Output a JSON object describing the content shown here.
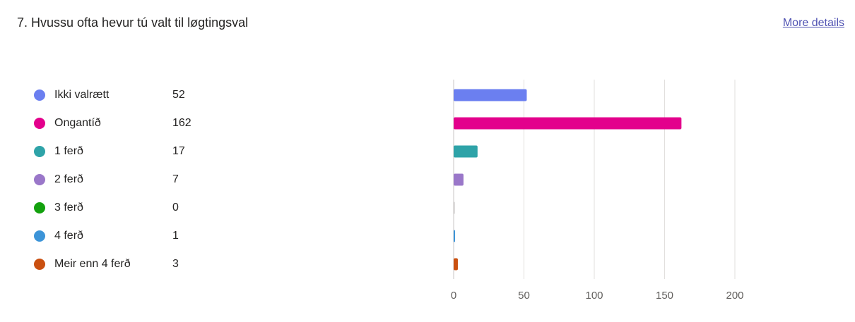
{
  "question": {
    "title": "7. Hvussu ofta hevur tú valt til løgtingsval",
    "more_details_label": "More details"
  },
  "chart_data": {
    "type": "bar",
    "orientation": "horizontal",
    "categories": [
      "Ikki valrætt",
      "Ongantíð",
      "1 ferð",
      "2 ferð",
      "3 ferð",
      "4 ferð",
      "Meir enn 4 ferð"
    ],
    "values": [
      52,
      162,
      17,
      7,
      0,
      1,
      3
    ],
    "colors": [
      "#6b7ff0",
      "#e3008c",
      "#2ea3a8",
      "#9a77c9",
      "#13a10e",
      "#3c94d8",
      "#ca5010"
    ],
    "xlim": [
      0,
      200
    ],
    "xticks": [
      0,
      50,
      100,
      150,
      200
    ],
    "grid": true,
    "legend_placement": "left"
  }
}
